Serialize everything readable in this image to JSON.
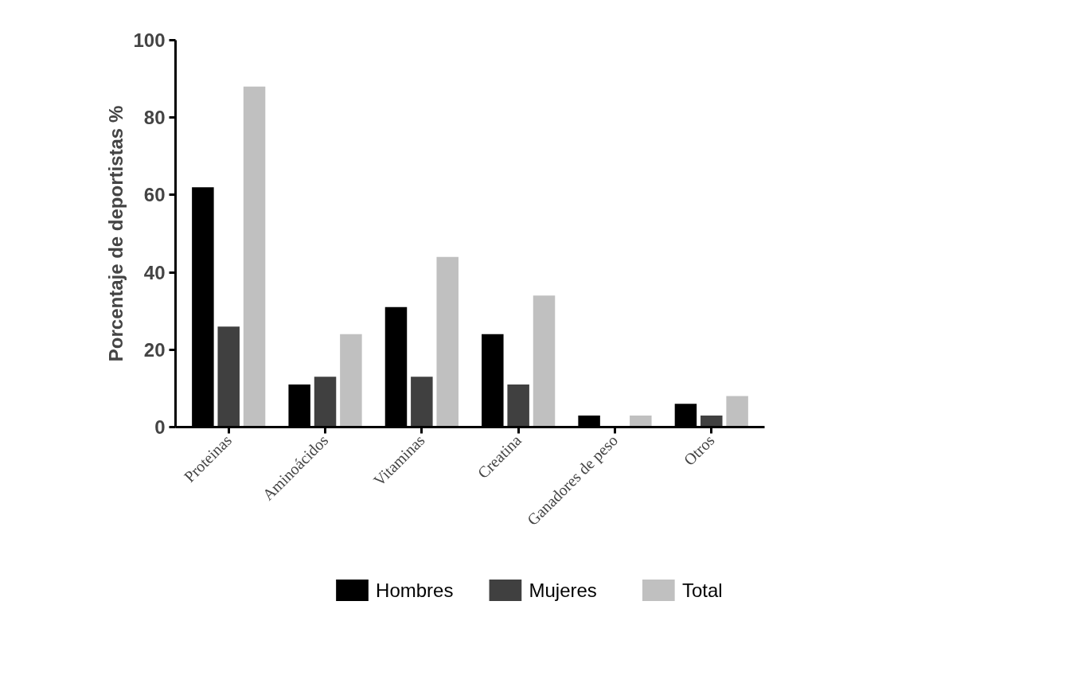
{
  "chart_data": {
    "type": "bar",
    "ylabel": "Porcentaje de deportistas %",
    "categories": [
      "Proteinas",
      "Aminoácidos",
      "Vitaminas",
      "Creatina",
      "Ganadores de peso",
      "Otros"
    ],
    "series": [
      {
        "name": "Hombres",
        "color": "#000000",
        "values": [
          62,
          11,
          31,
          24,
          3,
          6
        ]
      },
      {
        "name": "Mujeres",
        "color": "#404040",
        "values": [
          26,
          13,
          13,
          11,
          0,
          3
        ]
      },
      {
        "name": "Total",
        "color": "#c0c0c0",
        "values": [
          88,
          24,
          44,
          34,
          3,
          8
        ]
      }
    ],
    "ylim": [
      0,
      100
    ],
    "yticks": [
      0,
      20,
      40,
      60,
      80,
      100
    ],
    "grid": false,
    "legend": "bottom"
  }
}
